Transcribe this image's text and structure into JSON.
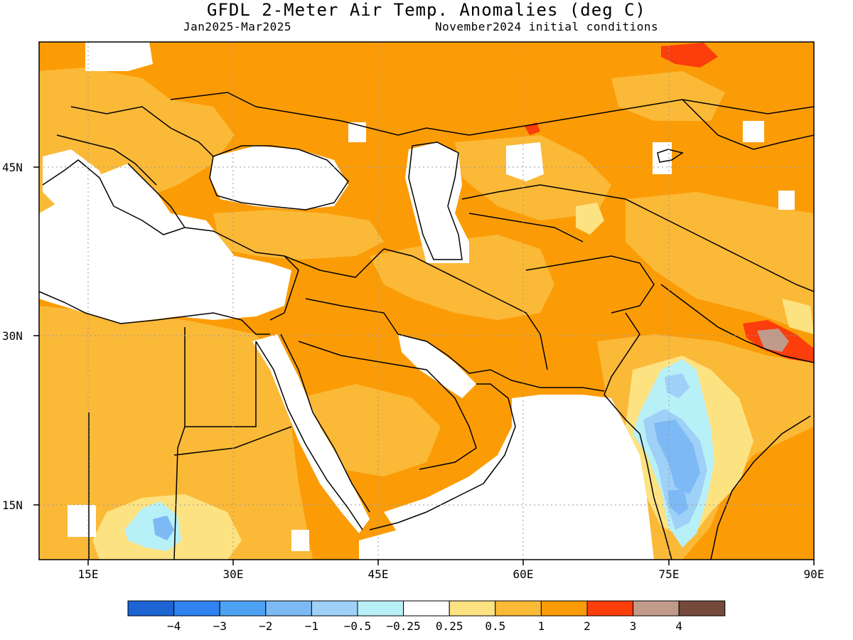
{
  "title": "GFDL 2-Meter Air Temp. Anomalies (deg C)",
  "period": "Jan2025-Mar2025",
  "initial_conditions": "November2024 initial conditions",
  "axes": {
    "lat_labels": [
      "45N",
      "30N",
      "15N"
    ],
    "lon_labels": [
      "15E",
      "30E",
      "45E",
      "60E",
      "75E",
      "90E"
    ]
  },
  "colorbar": {
    "colors": [
      "#1c64d4",
      "#2f82f0",
      "#4ea2f4",
      "#7cb9f5",
      "#9ed0f8",
      "#b8f0f8",
      "#ffffff",
      "#fde282",
      "#fbb938",
      "#fb9c07",
      "#fc3d0c",
      "#c09a8a",
      "#744a3c"
    ],
    "labels": [
      "−4",
      "−3",
      "−2",
      "−1",
      "−0.5",
      "−0.25",
      "0.25",
      "0.5",
      "1",
      "2",
      "3",
      "4"
    ]
  },
  "legend": {
    "anomaly_colors": {
      "strong_warm": "#fc3d0c",
      "warm": "#fb9c07",
      "moderate_warm": "#fbb938",
      "slight_warm": "#fde282",
      "slight_cool": "#b8f0f8",
      "cool": "#9ed0f8",
      "cooler": "#7cb9f5",
      "very_warm": "#c09a8a"
    }
  }
}
